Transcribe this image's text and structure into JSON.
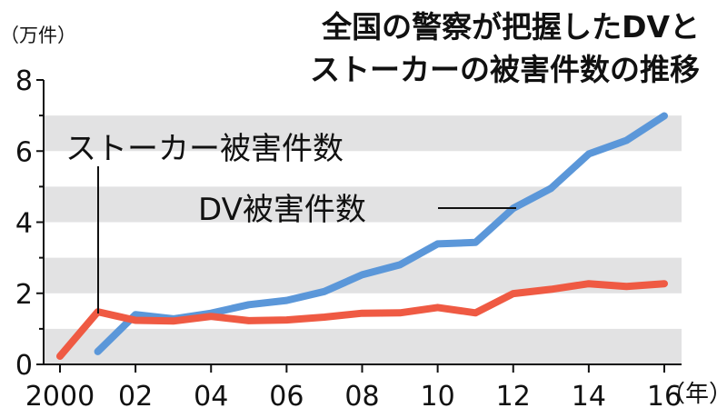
{
  "chart_data": {
    "type": "line",
    "title": "全国の警察が把握したDVとストーカーの被害件数の推移",
    "title_lines": [
      "全国の警察が把握したDVと",
      "ストーカーの被害件数の推移"
    ],
    "y_unit": "（万件）",
    "x_unit": "（年）",
    "ylim": [
      0,
      8
    ],
    "y_ticks": [
      "0",
      "2",
      "4",
      "6",
      "8"
    ],
    "x_tick_labels": [
      "2000",
      "02",
      "04",
      "06",
      "08",
      "10",
      "12",
      "14",
      "16"
    ],
    "grid": "alternating horizontal bands",
    "series": [
      {
        "name": "DV被害件数",
        "color": "#5b97d9",
        "x": [
          2001,
          2002,
          2003,
          2004,
          2005,
          2006,
          2007,
          2008,
          2009,
          2010,
          2011,
          2012,
          2013,
          2014,
          2015,
          2016
        ],
        "values": [
          0.36,
          1.4,
          1.28,
          1.44,
          1.68,
          1.8,
          2.05,
          2.52,
          2.8,
          3.39,
          3.43,
          4.39,
          4.95,
          5.92,
          6.3,
          6.99
        ]
      },
      {
        "name": "ストーカー被害件数",
        "color": "#ef5a43",
        "x": [
          2000,
          2001,
          2002,
          2003,
          2004,
          2005,
          2006,
          2007,
          2008,
          2009,
          2010,
          2011,
          2012,
          2013,
          2014,
          2015,
          2016
        ],
        "values": [
          0.23,
          1.48,
          1.24,
          1.22,
          1.35,
          1.23,
          1.25,
          1.33,
          1.44,
          1.45,
          1.6,
          1.45,
          1.99,
          2.11,
          2.27,
          2.19,
          2.27
        ]
      }
    ]
  }
}
